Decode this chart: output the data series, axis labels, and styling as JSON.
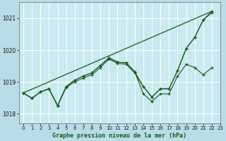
{
  "title": "Graphe pression niveau de la mer (hPa)",
  "background_color": "#b8dde8",
  "plot_bg_color": "#c8eaf0",
  "line_color": "#1a5c1a",
  "xlim": [
    -0.5,
    23
  ],
  "ylim": [
    1017.7,
    1021.5
  ],
  "xticks": [
    0,
    1,
    2,
    3,
    4,
    5,
    6,
    7,
    8,
    9,
    10,
    11,
    12,
    13,
    14,
    15,
    16,
    17,
    18,
    19,
    20,
    21,
    22,
    23
  ],
  "yticks": [
    1018,
    1019,
    1020,
    1021
  ],
  "trend_line": [
    [
      0,
      22
    ],
    [
      1018.65,
      1021.22
    ]
  ],
  "s1": [
    1018.65,
    1018.48,
    1018.68,
    1018.78,
    1018.25,
    1018.82,
    1019.0,
    1019.12,
    1019.22,
    1019.45,
    1019.72,
    1019.58,
    1019.55,
    1019.28,
    1018.85,
    1018.52,
    1018.78,
    1018.78,
    1019.35,
    1020.05,
    1020.4,
    1020.95,
    1021.18
  ],
  "s2": [
    1018.65,
    1018.48,
    1018.68,
    1018.78,
    1018.25,
    1018.85,
    1019.05,
    1019.18,
    1019.28,
    1019.52,
    1019.75,
    1019.62,
    1019.6,
    1019.32,
    1018.62,
    1018.38,
    1018.62,
    1018.62,
    1019.18,
    1019.55,
    1019.45,
    1019.22,
    1019.45
  ],
  "s3": [
    1018.65,
    1018.48,
    1018.68,
    1018.78,
    1018.25,
    1018.85,
    1019.05,
    1019.18,
    1019.28,
    1019.52,
    1019.75,
    1019.62,
    1019.6,
    1019.32,
    1018.85,
    1018.52,
    1018.78,
    1018.78,
    1019.35,
    1020.05,
    1020.4,
    1020.95,
    1021.22
  ]
}
